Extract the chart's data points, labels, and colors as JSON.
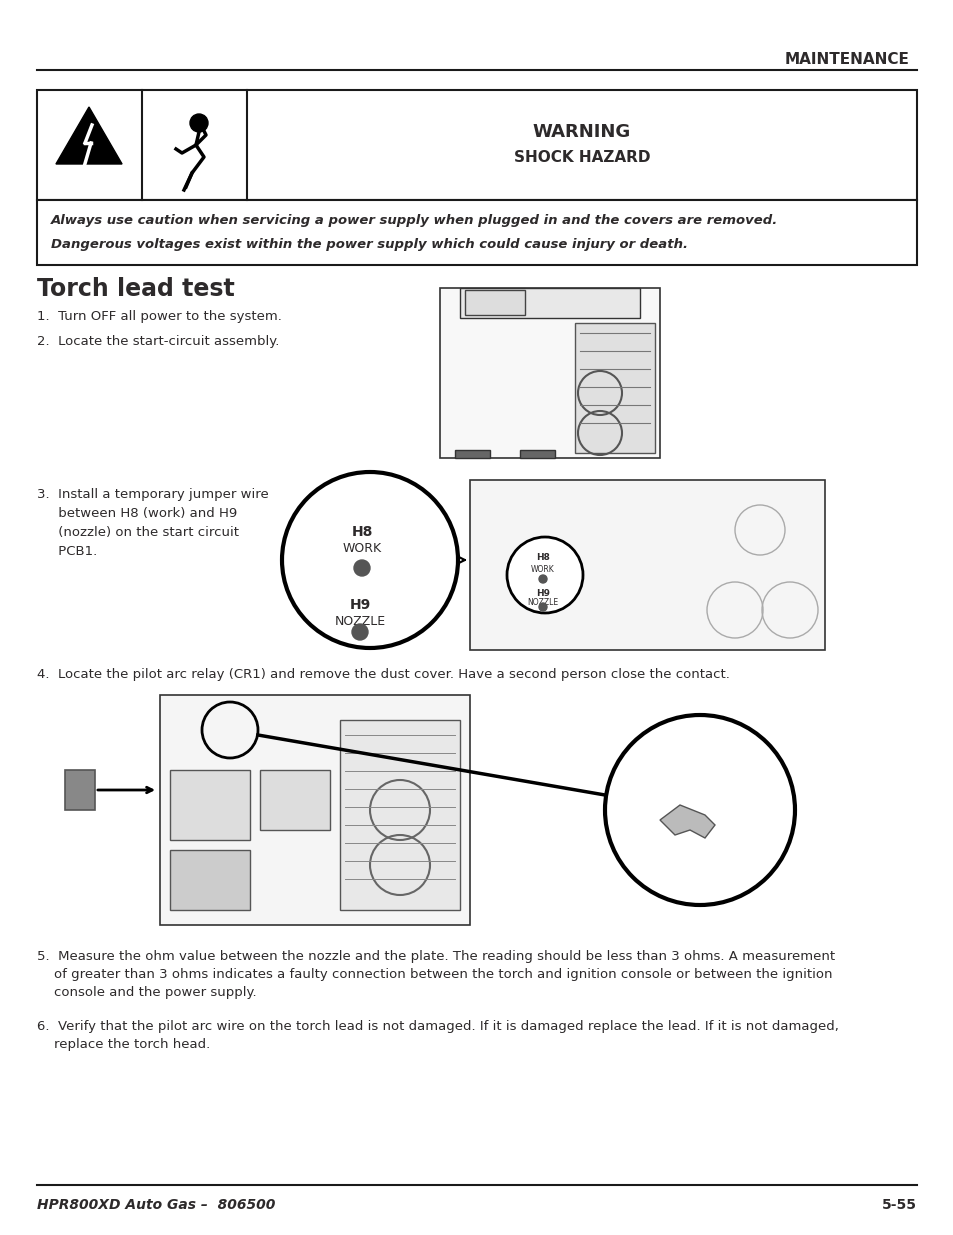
{
  "page_background": "#ffffff",
  "header_text": "MAINTENANCE",
  "footer_left": "HPR800XD Auto Gas –  806500",
  "footer_right": "5-55",
  "warning_title": "WARNING",
  "warning_subtitle": "SHOCK HAZARD",
  "warning_body_line1": "Always use caution when servicing a power supply when plugged in and the covers are removed.",
  "warning_body_line2": "Dangerous voltages exist within the power supply which could cause injury or death.",
  "section_title": "Torch lead test",
  "step1": "1.  Turn OFF all power to the system.",
  "step2": "2.  Locate the start-circuit assembly.",
  "step3a": "3.  Install a temporary jumper wire",
  "step3b": "     between H8 (work) and H9",
  "step3c": "     (nozzle) on the start circuit",
  "step3d": "     PCB1.",
  "step4": "4.  Locate the pilot arc relay (CR1) and remove the dust cover. Have a second person close the contact.",
  "step5a": "5.  Measure the ohm value between the nozzle and the plate. The reading should be less than 3 ohms. A measurement",
  "step5b": "    of greater than 3 ohms indicates a faulty connection between the torch and ignition console or between the ignition",
  "step5c": "    console and the power supply.",
  "step6a": "6.  Verify that the pilot arc wire on the torch lead is not damaged. If it is damaged replace the lead. If it is not damaged,",
  "step6b": "    replace the torch head.",
  "text_color": "#2d2a2b",
  "line_color": "#1a1a1a"
}
